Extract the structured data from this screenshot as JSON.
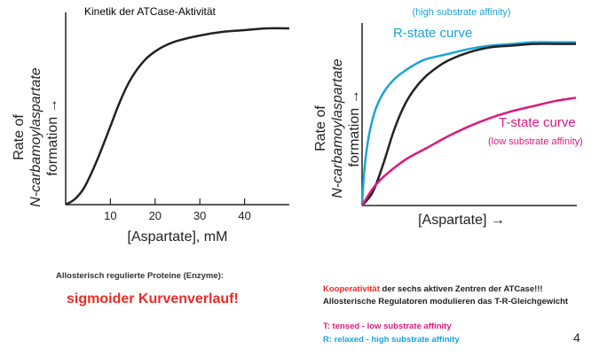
{
  "slide": {
    "left_caption": "Allosterisch regulierte Proteine (Enzyme):",
    "left_highlight": "sigmoider Kurvenverlauf!",
    "right_line1_red": "Kooperativität",
    "right_line1_rest": " der sechs aktiven Zentren der ATCase!!!",
    "right_line2": "Allosterische Regulatoren modulieren das T-R-Gleichgewicht",
    "legend_t": "T: tensed - low substrate affinity",
    "legend_r": "R: relaxed - high substrate affinity",
    "page_number": "4"
  },
  "colors": {
    "red": "#ee2a24",
    "magenta": "#d81b7e",
    "cyan": "#1ba3d8",
    "black": "#222222"
  },
  "chart_data": [
    {
      "type": "line",
      "title": "Kinetik der ATCase-Aktivität",
      "ylabel_line1": "Rate of",
      "ylabel_line2": "N-carbamoylaspartate",
      "ylabel_line3": "formation →",
      "xlabel": "[Aspartate], mM",
      "xlim": [
        0,
        50
      ],
      "ylim": [
        0,
        1.0
      ],
      "xticks": [
        10,
        20,
        30,
        40
      ],
      "grid": false,
      "series": [
        {
          "color": "#222222",
          "x": [
            0,
            2,
            4,
            6,
            8,
            10,
            12,
            14,
            16,
            18,
            20,
            22,
            25,
            30,
            35,
            40,
            45,
            50
          ],
          "y": [
            0,
            0.03,
            0.09,
            0.19,
            0.31,
            0.44,
            0.57,
            0.68,
            0.76,
            0.82,
            0.86,
            0.89,
            0.92,
            0.95,
            0.97,
            0.98,
            0.99,
            0.99
          ]
        }
      ]
    },
    {
      "type": "line",
      "annotation_top": "(high substrate affinity)",
      "ylabel_line1": "Rate of",
      "ylabel_line2": "N-carbamoylaspartate",
      "ylabel_line3": "formation →",
      "xlabel": "[Aspartate] →",
      "xlim": [
        0,
        1
      ],
      "ylim": [
        0,
        1
      ],
      "grid": false,
      "series": [
        {
          "name": "R-state curve",
          "color": "#1ba3d8",
          "x": [
            0,
            0.01,
            0.03,
            0.06,
            0.1,
            0.15,
            0.2,
            0.25,
            0.3,
            0.4,
            0.5,
            0.6,
            0.7,
            0.8,
            0.9,
            1.0
          ],
          "y": [
            0,
            0.2,
            0.4,
            0.56,
            0.67,
            0.75,
            0.8,
            0.84,
            0.87,
            0.9,
            0.93,
            0.95,
            0.96,
            0.97,
            0.97,
            0.97
          ]
        },
        {
          "color": "#222222",
          "x": [
            0,
            0.05,
            0.1,
            0.15,
            0.2,
            0.25,
            0.3,
            0.35,
            0.4,
            0.5,
            0.6,
            0.7,
            0.8,
            0.9,
            1.0
          ],
          "y": [
            0,
            0.08,
            0.25,
            0.45,
            0.6,
            0.7,
            0.77,
            0.82,
            0.86,
            0.91,
            0.94,
            0.95,
            0.96,
            0.96,
            0.96
          ]
        },
        {
          "name": "T-state curve",
          "sublabel": "(low substrate affinity)",
          "color": "#d81b7e",
          "x": [
            0,
            0.05,
            0.1,
            0.2,
            0.3,
            0.4,
            0.5,
            0.6,
            0.7,
            0.8,
            0.9,
            1.0
          ],
          "y": [
            0,
            0.1,
            0.17,
            0.27,
            0.34,
            0.41,
            0.47,
            0.52,
            0.56,
            0.59,
            0.62,
            0.64
          ]
        }
      ]
    }
  ]
}
